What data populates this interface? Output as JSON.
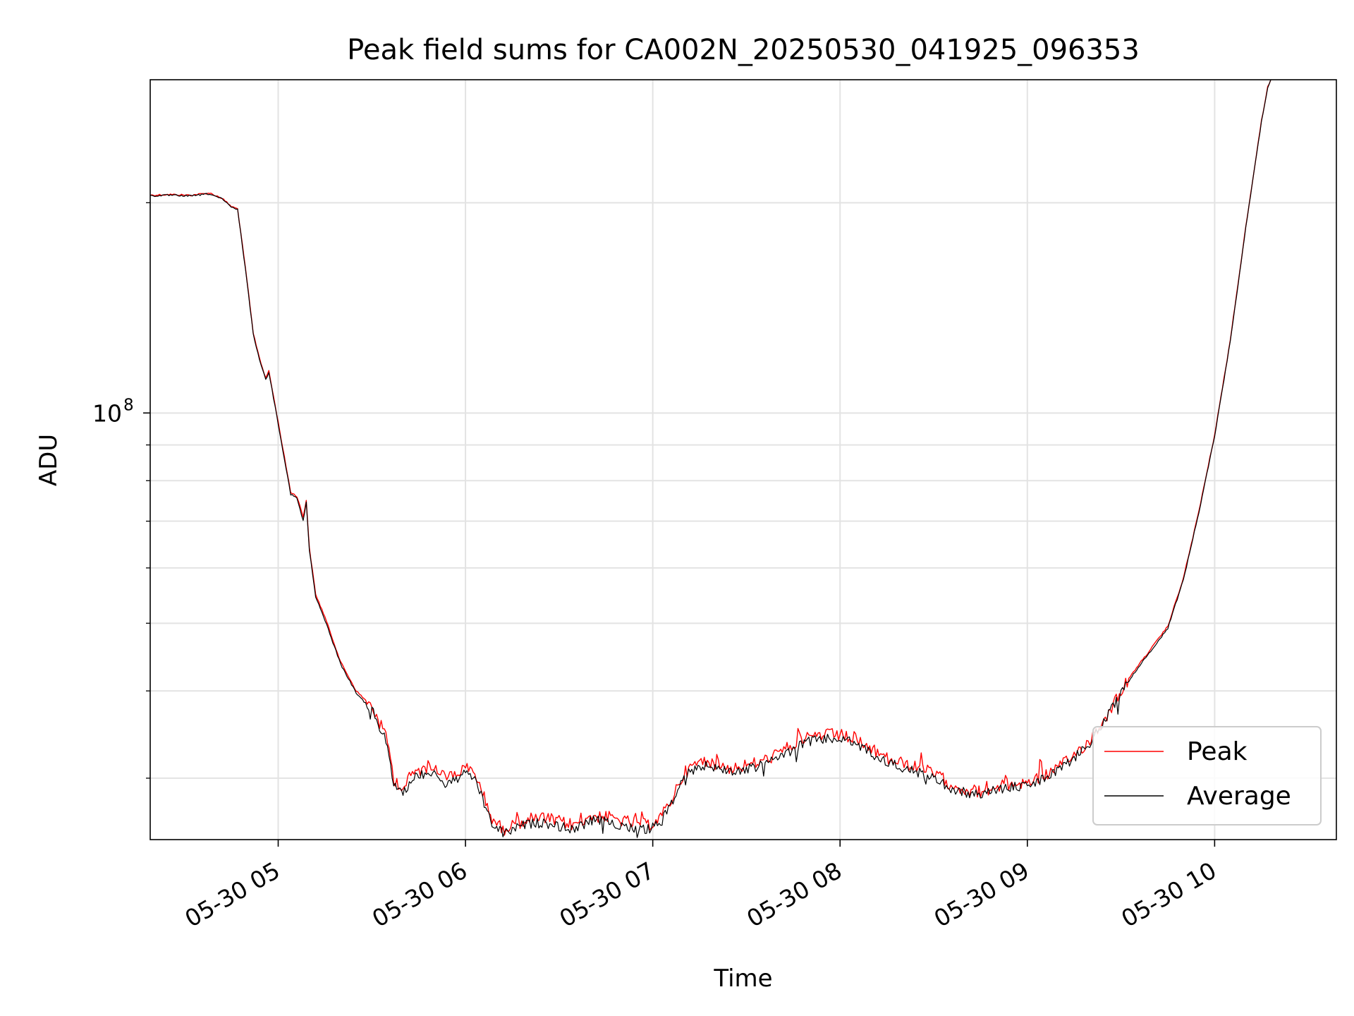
{
  "chart_data": {
    "type": "line",
    "title": "Peak field sums for CA002N_20250530_041925_096353",
    "xlabel": "Time",
    "ylabel": "ADU",
    "y_scale": "log",
    "grid": true,
    "legend_position": "lower-right",
    "xlim": [
      "2025-05-30 04:19",
      "2025-05-30 10:39"
    ],
    "ylim": [
      24500000,
      300000000
    ],
    "x_ticks": [
      {
        "t": "2025-05-30 05:00",
        "label": "05-30 05"
      },
      {
        "t": "2025-05-30 06:00",
        "label": "05-30 06"
      },
      {
        "t": "2025-05-30 07:00",
        "label": "05-30 07"
      },
      {
        "t": "2025-05-30 08:00",
        "label": "05-30 08"
      },
      {
        "t": "2025-05-30 09:00",
        "label": "05-30 09"
      },
      {
        "t": "2025-05-30 10:00",
        "label": "05-30 10"
      }
    ],
    "y_ticks": [
      {
        "value": 100000000,
        "label_base": "10",
        "label_exp": "8"
      }
    ],
    "y_minor_ticks": [
      30000000,
      40000000,
      50000000,
      60000000,
      70000000,
      80000000,
      90000000,
      200000000
    ],
    "series": [
      {
        "name": "Peak",
        "color": "#ff0000",
        "points": [
          [
            "2025-05-30 04:19",
            205000000
          ],
          [
            "2025-05-30 04:25",
            205500000
          ],
          [
            "2025-05-30 04:32",
            205000000
          ],
          [
            "2025-05-30 04:38",
            206500000
          ],
          [
            "2025-05-30 04:42",
            203000000
          ],
          [
            "2025-05-30 04:45",
            197500000
          ],
          [
            "2025-05-30 04:47",
            196000000
          ],
          [
            "2025-05-30 04:50",
            155000000
          ],
          [
            "2025-05-30 04:52",
            130000000
          ],
          [
            "2025-05-30 04:54",
            120000000
          ],
          [
            "2025-05-30 04:56",
            112000000
          ],
          [
            "2025-05-30 04:57",
            115000000
          ],
          [
            "2025-05-30 05:00",
            97000000
          ],
          [
            "2025-05-30 05:04",
            77000000
          ],
          [
            "2025-05-30 05:06",
            76000000
          ],
          [
            "2025-05-30 05:08",
            71000000
          ],
          [
            "2025-05-30 05:09",
            75000000
          ],
          [
            "2025-05-30 05:10",
            64000000
          ],
          [
            "2025-05-30 05:12",
            55000000
          ],
          [
            "2025-05-30 05:15",
            51000000
          ],
          [
            "2025-05-30 05:20",
            44000000
          ],
          [
            "2025-05-30 05:25",
            40000000
          ],
          [
            "2025-05-30 05:30",
            38000000
          ],
          [
            "2025-05-30 05:35",
            34000000
          ],
          [
            "2025-05-30 05:37",
            30000000
          ],
          [
            "2025-05-30 05:40",
            29000000
          ],
          [
            "2025-05-30 05:43",
            30500000
          ],
          [
            "2025-05-30 05:47",
            31000000
          ],
          [
            "2025-05-30 05:50",
            31500000
          ],
          [
            "2025-05-30 05:53",
            30000000
          ],
          [
            "2025-05-30 05:57",
            30500000
          ],
          [
            "2025-05-30 06:00",
            31000000
          ],
          [
            "2025-05-30 06:03",
            30500000
          ],
          [
            "2025-05-30 06:05",
            29000000
          ],
          [
            "2025-05-30 06:08",
            26500000
          ],
          [
            "2025-05-30 06:12",
            25300000
          ],
          [
            "2025-05-30 06:15",
            25700000
          ],
          [
            "2025-05-30 06:20",
            26200000
          ],
          [
            "2025-05-30 06:25",
            26300000
          ],
          [
            "2025-05-30 06:30",
            26000000
          ],
          [
            "2025-05-30 06:35",
            25700000
          ],
          [
            "2025-05-30 06:40",
            26500000
          ],
          [
            "2025-05-30 06:45",
            26400000
          ],
          [
            "2025-05-30 06:50",
            26100000
          ],
          [
            "2025-05-30 06:55",
            25800000
          ],
          [
            "2025-05-30 06:58",
            25700000
          ],
          [
            "2025-05-30 07:00",
            25900000
          ],
          [
            "2025-05-30 07:03",
            26500000
          ],
          [
            "2025-05-30 07:06",
            28000000
          ],
          [
            "2025-05-30 07:10",
            30500000
          ],
          [
            "2025-05-30 07:15",
            31700000
          ],
          [
            "2025-05-30 07:20",
            31500000
          ],
          [
            "2025-05-30 07:25",
            31000000
          ],
          [
            "2025-05-30 07:30",
            31300000
          ],
          [
            "2025-05-30 07:35",
            31700000
          ],
          [
            "2025-05-30 07:40",
            32500000
          ],
          [
            "2025-05-30 07:45",
            33500000
          ],
          [
            "2025-05-30 07:50",
            34500000
          ],
          [
            "2025-05-30 07:55",
            34600000
          ],
          [
            "2025-05-30 08:00",
            34600000
          ],
          [
            "2025-05-30 08:05",
            34000000
          ],
          [
            "2025-05-30 08:10",
            33000000
          ],
          [
            "2025-05-30 08:15",
            32000000
          ],
          [
            "2025-05-30 08:20",
            31500000
          ],
          [
            "2025-05-30 08:25",
            31000000
          ],
          [
            "2025-05-30 08:30",
            30500000
          ],
          [
            "2025-05-30 08:35",
            29500000
          ],
          [
            "2025-05-30 08:40",
            28900000
          ],
          [
            "2025-05-30 08:45",
            28700000
          ],
          [
            "2025-05-30 08:50",
            29200000
          ],
          [
            "2025-05-30 08:55",
            29400000
          ],
          [
            "2025-05-30 09:00",
            29600000
          ],
          [
            "2025-05-30 09:05",
            30200000
          ],
          [
            "2025-05-30 09:10",
            31000000
          ],
          [
            "2025-05-30 09:15",
            32400000
          ],
          [
            "2025-05-30 09:20",
            34000000
          ],
          [
            "2025-05-30 09:25",
            36600000
          ],
          [
            "2025-05-30 09:30",
            40100000
          ],
          [
            "2025-05-30 09:35",
            43200000
          ],
          [
            "2025-05-30 09:40",
            46200000
          ],
          [
            "2025-05-30 09:45",
            49500000
          ],
          [
            "2025-05-30 09:50",
            58000000
          ],
          [
            "2025-05-30 09:55",
            72500000
          ],
          [
            "2025-05-30 10:00",
            93000000
          ],
          [
            "2025-05-30 10:05",
            127000000
          ],
          [
            "2025-05-30 10:10",
            185000000
          ],
          [
            "2025-05-30 10:15",
            262000000
          ],
          [
            "2025-05-30 10:17",
            293000000
          ],
          [
            "2025-05-30 10:18",
            300000000
          ]
        ]
      },
      {
        "name": "Average",
        "color": "#000000",
        "points": [
          [
            "2025-05-30 04:19",
            204500000
          ],
          [
            "2025-05-30 04:25",
            205000000
          ],
          [
            "2025-05-30 04:32",
            204500000
          ],
          [
            "2025-05-30 04:38",
            206000000
          ],
          [
            "2025-05-30 04:42",
            202500000
          ],
          [
            "2025-05-30 04:45",
            197000000
          ],
          [
            "2025-05-30 04:47",
            195500000
          ],
          [
            "2025-05-30 04:50",
            154500000
          ],
          [
            "2025-05-30 04:52",
            129500000
          ],
          [
            "2025-05-30 04:54",
            119500000
          ],
          [
            "2025-05-30 04:56",
            111500000
          ],
          [
            "2025-05-30 04:57",
            114500000
          ],
          [
            "2025-05-30 05:00",
            96500000
          ],
          [
            "2025-05-30 05:04",
            76500000
          ],
          [
            "2025-05-30 05:06",
            75500000
          ],
          [
            "2025-05-30 05:08",
            70000000
          ],
          [
            "2025-05-30 05:09",
            74500000
          ],
          [
            "2025-05-30 05:10",
            63500000
          ],
          [
            "2025-05-30 05:12",
            54500000
          ],
          [
            "2025-05-30 05:15",
            50500000
          ],
          [
            "2025-05-30 05:20",
            43700000
          ],
          [
            "2025-05-30 05:25",
            39700000
          ],
          [
            "2025-05-30 05:30",
            37600000
          ],
          [
            "2025-05-30 05:35",
            33500000
          ],
          [
            "2025-05-30 05:37",
            29500000
          ],
          [
            "2025-05-30 05:40",
            28400000
          ],
          [
            "2025-05-30 05:43",
            30000000
          ],
          [
            "2025-05-30 05:47",
            30500000
          ],
          [
            "2025-05-30 05:50",
            30800000
          ],
          [
            "2025-05-30 05:53",
            29300000
          ],
          [
            "2025-05-30 05:57",
            29900000
          ],
          [
            "2025-05-30 06:00",
            30400000
          ],
          [
            "2025-05-30 06:03",
            30000000
          ],
          [
            "2025-05-30 06:05",
            28400000
          ],
          [
            "2025-05-30 06:08",
            26000000
          ],
          [
            "2025-05-30 06:12",
            25000000
          ],
          [
            "2025-05-30 06:15",
            25300000
          ],
          [
            "2025-05-30 06:20",
            25800000
          ],
          [
            "2025-05-30 06:25",
            25900000
          ],
          [
            "2025-05-30 06:30",
            25600000
          ],
          [
            "2025-05-30 06:35",
            25300000
          ],
          [
            "2025-05-30 06:40",
            26100000
          ],
          [
            "2025-05-30 06:45",
            26000000
          ],
          [
            "2025-05-30 06:50",
            25700000
          ],
          [
            "2025-05-30 06:55",
            25400000
          ],
          [
            "2025-05-30 06:58",
            25300000
          ],
          [
            "2025-05-30 07:00",
            25500000
          ],
          [
            "2025-05-30 07:03",
            26100000
          ],
          [
            "2025-05-30 07:06",
            27600000
          ],
          [
            "2025-05-30 07:10",
            30100000
          ],
          [
            "2025-05-30 07:15",
            31300000
          ],
          [
            "2025-05-30 07:20",
            31100000
          ],
          [
            "2025-05-30 07:25",
            30600000
          ],
          [
            "2025-05-30 07:30",
            30900000
          ],
          [
            "2025-05-30 07:35",
            31300000
          ],
          [
            "2025-05-30 07:40",
            32100000
          ],
          [
            "2025-05-30 07:45",
            33000000
          ],
          [
            "2025-05-30 07:50",
            33900000
          ],
          [
            "2025-05-30 07:55",
            34100000
          ],
          [
            "2025-05-30 08:00",
            34200000
          ],
          [
            "2025-05-30 08:05",
            33600000
          ],
          [
            "2025-05-30 08:10",
            32600000
          ],
          [
            "2025-05-30 08:15",
            31600000
          ],
          [
            "2025-05-30 08:20",
            31100000
          ],
          [
            "2025-05-30 08:25",
            30600000
          ],
          [
            "2025-05-30 08:30",
            30000000
          ],
          [
            "2025-05-30 08:35",
            29100000
          ],
          [
            "2025-05-30 08:40",
            28600000
          ],
          [
            "2025-05-30 08:45",
            28400000
          ],
          [
            "2025-05-30 08:50",
            28900000
          ],
          [
            "2025-05-30 08:55",
            29100000
          ],
          [
            "2025-05-30 09:00",
            29300000
          ],
          [
            "2025-05-30 09:05",
            29900000
          ],
          [
            "2025-05-30 09:10",
            30700000
          ],
          [
            "2025-05-30 09:15",
            32100000
          ],
          [
            "2025-05-30 09:20",
            33700000
          ],
          [
            "2025-05-30 09:25",
            36300000
          ],
          [
            "2025-05-30 09:30",
            39800000
          ],
          [
            "2025-05-30 09:35",
            42900000
          ],
          [
            "2025-05-30 09:40",
            45900000
          ],
          [
            "2025-05-30 09:45",
            49200000
          ],
          [
            "2025-05-30 09:50",
            57700000
          ],
          [
            "2025-05-30 09:55",
            72200000
          ],
          [
            "2025-05-30 10:00",
            92700000
          ],
          [
            "2025-05-30 10:05",
            126500000
          ],
          [
            "2025-05-30 10:10",
            184500000
          ],
          [
            "2025-05-30 10:15",
            261500000
          ],
          [
            "2025-05-30 10:17",
            292500000
          ],
          [
            "2025-05-30 10:18",
            300000000
          ]
        ]
      }
    ]
  }
}
